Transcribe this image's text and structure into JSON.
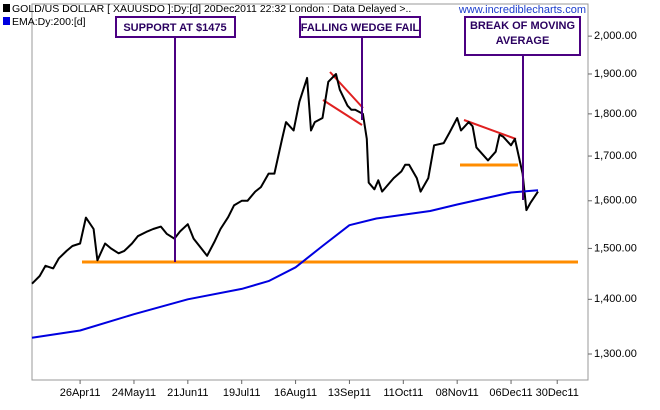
{
  "chart_data": {
    "type": "line",
    "series": [
      {
        "name": "GOLD/US DOLLAR [ XAUUSDO ]:Dy:[d]",
        "color": "#000000",
        "x": [
          "2011-04-01",
          "2011-04-05",
          "2011-04-08",
          "2011-04-12",
          "2011-04-15",
          "2011-04-19",
          "2011-04-22",
          "2011-04-26",
          "2011-04-29",
          "2011-05-03",
          "2011-05-05",
          "2011-05-09",
          "2011-05-12",
          "2011-05-16",
          "2011-05-19",
          "2011-05-23",
          "2011-05-26",
          "2011-05-31",
          "2011-06-03",
          "2011-06-07",
          "2011-06-10",
          "2011-06-14",
          "2011-06-17",
          "2011-06-21",
          "2011-06-24",
          "2011-06-28",
          "2011-07-01",
          "2011-07-05",
          "2011-07-08",
          "2011-07-12",
          "2011-07-15",
          "2011-07-19",
          "2011-07-22",
          "2011-07-26",
          "2011-07-29",
          "2011-08-02",
          "2011-08-05",
          "2011-08-09",
          "2011-08-11",
          "2011-08-15",
          "2011-08-18",
          "2011-08-22",
          "2011-08-24",
          "2011-08-26",
          "2011-08-30",
          "2011-09-02",
          "2011-09-06",
          "2011-09-08",
          "2011-09-12",
          "2011-09-14",
          "2011-09-16",
          "2011-09-20",
          "2011-09-22",
          "2011-09-23",
          "2011-09-26",
          "2011-09-28",
          "2011-09-30",
          "2011-10-04",
          "2011-10-06",
          "2011-10-10",
          "2011-10-12",
          "2011-10-14",
          "2011-10-18",
          "2011-10-20",
          "2011-10-24",
          "2011-10-27",
          "2011-11-01",
          "2011-11-04",
          "2011-11-08",
          "2011-11-10",
          "2011-11-14",
          "2011-11-16",
          "2011-11-18",
          "2011-11-22",
          "2011-11-24",
          "2011-11-28",
          "2011-11-30",
          "2011-12-02",
          "2011-12-06",
          "2011-12-08",
          "2011-12-12",
          "2011-12-14",
          "2011-12-16",
          "2011-12-20"
        ],
        "values": [
          1430,
          1445,
          1465,
          1460,
          1480,
          1495,
          1505,
          1510,
          1564,
          1540,
          1476,
          1510,
          1500,
          1490,
          1495,
          1510,
          1525,
          1535,
          1540,
          1545,
          1530,
          1520,
          1535,
          1550,
          1520,
          1500,
          1485,
          1515,
          1540,
          1565,
          1590,
          1600,
          1600,
          1620,
          1630,
          1660,
          1660,
          1740,
          1780,
          1760,
          1830,
          1890,
          1760,
          1780,
          1790,
          1880,
          1900,
          1860,
          1820,
          1810,
          1810,
          1800,
          1740,
          1640,
          1625,
          1645,
          1620,
          1640,
          1650,
          1665,
          1680,
          1680,
          1650,
          1620,
          1650,
          1725,
          1730,
          1755,
          1790,
          1760,
          1780,
          1770,
          1720,
          1700,
          1690,
          1710,
          1750,
          1745,
          1725,
          1740,
          1660,
          1580,
          1595,
          1620
        ]
      },
      {
        "name": "EMA:Dy:200:[d]",
        "color": "#0000e0",
        "x": [
          "2011-04-01",
          "2011-04-26",
          "2011-05-24",
          "2011-06-21",
          "2011-07-19",
          "2011-08-02",
          "2011-08-16",
          "2011-08-30",
          "2011-09-13",
          "2011-09-27",
          "2011-10-11",
          "2011-10-25",
          "2011-11-08",
          "2011-11-22",
          "2011-12-06",
          "2011-12-20"
        ],
        "values": [
          1329,
          1342,
          1372,
          1400,
          1420,
          1435,
          1462,
          1505,
          1548,
          1562,
          1570,
          1578,
          1592,
          1605,
          1618,
          1623
        ]
      }
    ],
    "subtitle": "20Dec2011 22:32 London : Data Delayed >..",
    "watermark": "www.incrediblecharts.com",
    "annotations": [
      "SUPPORT AT $1475",
      "FALLING WEDGE FAIL",
      "BREAK OF MOVING AVERAGE"
    ],
    "log_scale": true,
    "xlim": [
      "2011-04-01",
      "2012-01-15"
    ],
    "xticks": [
      {
        "value": "2011-04-26",
        "label": "26Apr11"
      },
      {
        "value": "2011-05-24",
        "label": "24May11"
      },
      {
        "value": "2011-06-21",
        "label": "21Jun11"
      },
      {
        "value": "2011-07-19",
        "label": "19Jul11"
      },
      {
        "value": "2011-08-16",
        "label": "16Aug11"
      },
      {
        "value": "2011-09-13",
        "label": "13Sep11"
      },
      {
        "value": "2011-10-11",
        "label": "11Oct11"
      },
      {
        "value": "2011-11-08",
        "label": "08Nov11"
      },
      {
        "value": "2011-12-06",
        "label": "06Dec11"
      },
      {
        "value": "2011-12-30",
        "label": "30Dec11"
      }
    ],
    "ylim": [
      1255,
      2089
    ],
    "yticks": [
      {
        "value": 1300,
        "label": "1,300.00"
      },
      {
        "value": 1400,
        "label": "1,400.00"
      },
      {
        "value": 1500,
        "label": "1,500.00"
      },
      {
        "value": 1600,
        "label": "1,600.00"
      },
      {
        "value": 1700,
        "label": "1,700.00"
      },
      {
        "value": 1800,
        "label": "1,800.00"
      },
      {
        "value": 1900,
        "label": "1,900.00"
      },
      {
        "value": 2000,
        "label": "2,000.00"
      }
    ]
  }
}
